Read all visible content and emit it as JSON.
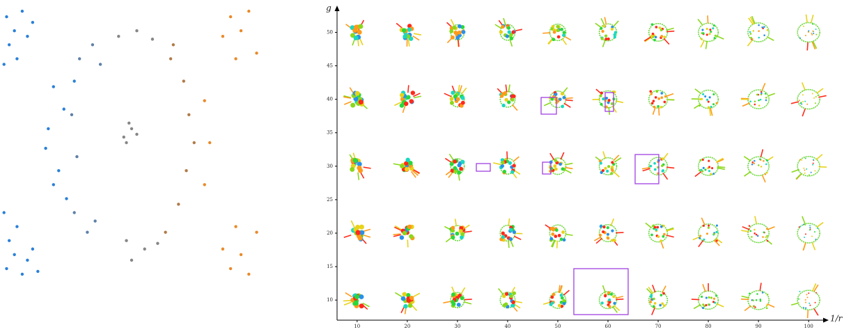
{
  "chart_data": [
    {
      "type": "scatter",
      "xlim": [
        0,
        100
      ],
      "ylim": [
        0,
        100
      ],
      "series": [
        {
          "color": "#2a80d8",
          "x": [
            2,
            5,
            8,
            3,
            10,
            6,
            12,
            1,
            2,
            5,
            8,
            3,
            10,
            12,
            6,
            1,
            14,
            20,
            18,
            22,
            25,
            17,
            24,
            28,
            20
          ],
          "values": [
            95,
            90,
            97,
            85,
            88,
            80,
            93,
            78,
            5,
            10,
            3,
            15,
            8,
            12,
            20,
            25,
            4,
            70,
            55,
            40,
            30,
            48,
            62,
            72,
            35
          ]
        },
        {
          "color": "#5f80a8",
          "x": [
            30,
            35,
            28,
            33,
            27,
            29,
            38,
            36
          ],
          "values": [
            80,
            85,
            25,
            18,
            60,
            45,
            78,
            22
          ]
        },
        {
          "color": "#868686",
          "x": [
            45,
            52,
            58,
            48,
            55,
            60,
            47,
            50,
            48,
            52,
            49,
            50
          ],
          "values": [
            88,
            90,
            87,
            15,
            12,
            14,
            52,
            55,
            50,
            53,
            57,
            8
          ]
        },
        {
          "color": "#b07a48",
          "x": [
            65,
            70,
            72,
            74,
            71,
            68,
            63,
            66
          ],
          "values": [
            80,
            72,
            60,
            50,
            40,
            28,
            18,
            85
          ]
        },
        {
          "color": "#e98a2a",
          "x": [
            88,
            92,
            95,
            85,
            98,
            90,
            88,
            92,
            95,
            85,
            98,
            90,
            78,
            80,
            78
          ],
          "values": [
            95,
            90,
            97,
            88,
            82,
            80,
            5,
            10,
            3,
            12,
            18,
            20,
            65,
            50,
            35
          ]
        }
      ]
    },
    {
      "type": "thumbnail-grid",
      "ylabel": "g",
      "xlabel": "1/r",
      "xlim": [
        6,
        104
      ],
      "ylim": [
        7,
        54
      ],
      "xticks": [
        10,
        20,
        30,
        40,
        50,
        60,
        70,
        80,
        90,
        100
      ],
      "yticks": [
        10,
        15,
        20,
        25,
        30,
        35,
        40,
        45,
        50
      ]
    }
  ]
}
